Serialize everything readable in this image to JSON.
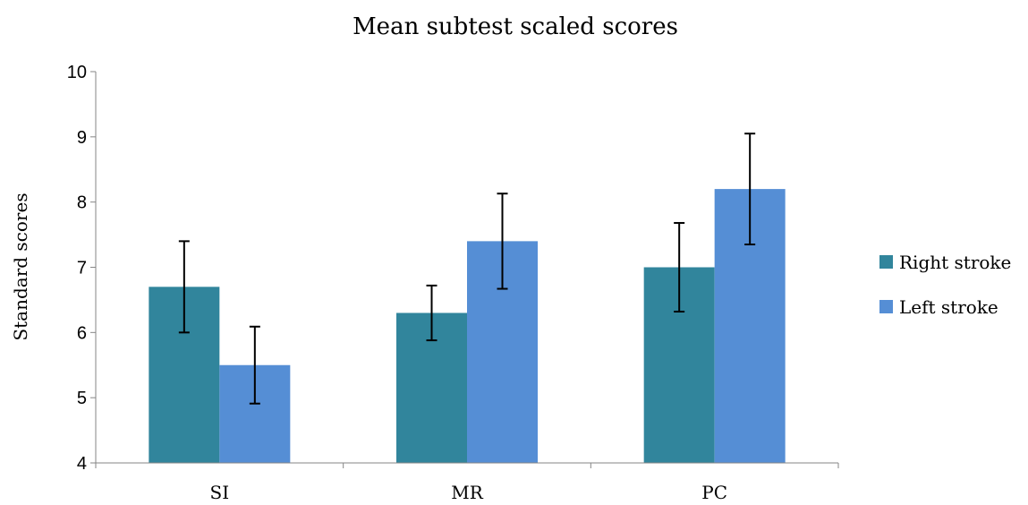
{
  "chart_data": {
    "type": "bar",
    "title": "Mean subtest scaled scores",
    "xlabel": "",
    "ylabel": "Standard scores",
    "ylim": [
      4,
      10
    ],
    "yticks": [
      4,
      5,
      6,
      7,
      8,
      9,
      10
    ],
    "categories": [
      "SI",
      "MR",
      "PC"
    ],
    "grid": false,
    "legend": "right",
    "series": [
      {
        "name": "Right stroke",
        "color": "#31859C",
        "values": [
          6.7,
          6.3,
          7.0
        ],
        "error": [
          0.7,
          0.42,
          0.68
        ]
      },
      {
        "name": "Left stroke",
        "color": "#558ED5",
        "values": [
          5.5,
          7.4,
          8.2
        ],
        "error": [
          0.59,
          0.73,
          0.85
        ]
      }
    ]
  }
}
